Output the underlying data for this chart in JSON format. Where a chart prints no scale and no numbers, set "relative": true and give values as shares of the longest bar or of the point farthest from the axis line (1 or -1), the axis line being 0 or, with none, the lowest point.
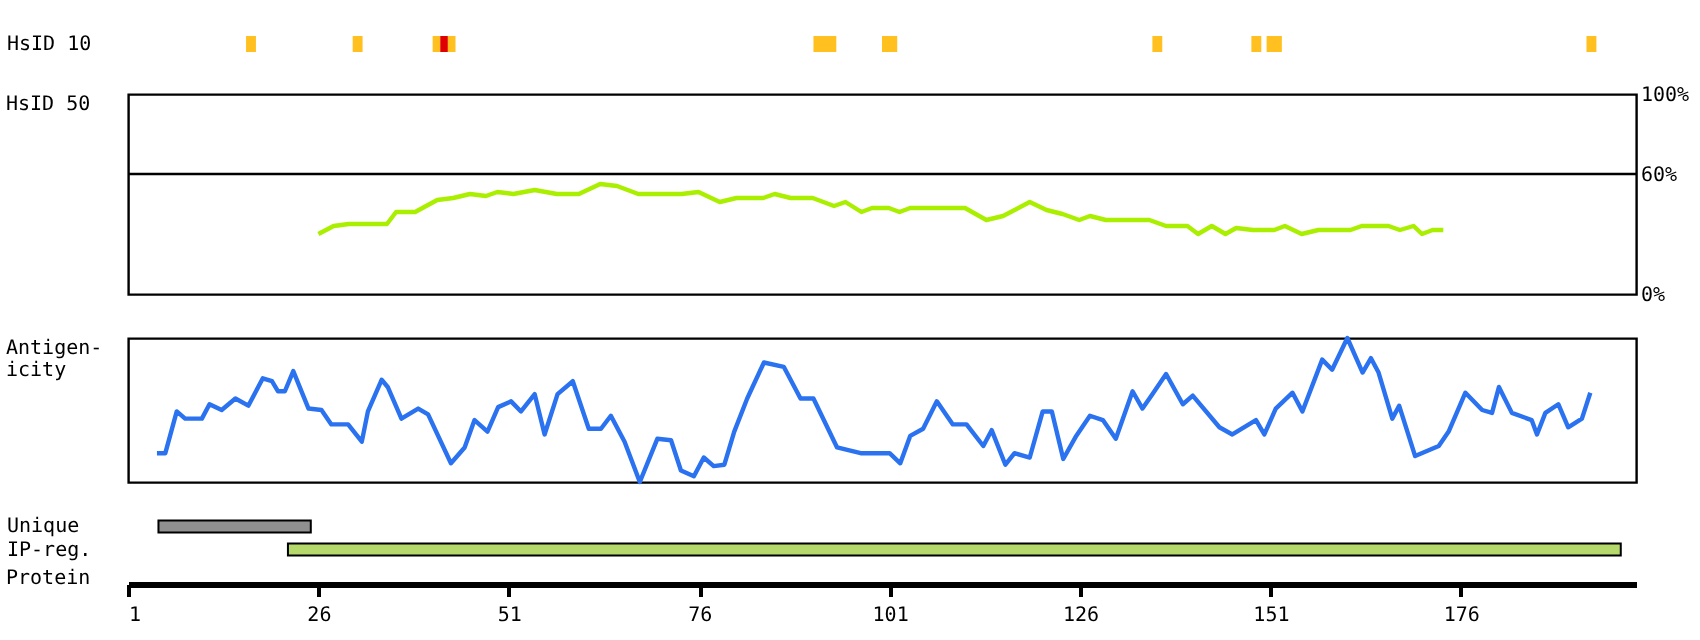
{
  "chart_data": [
    {
      "type": "bar",
      "orientation": "horizontal",
      "categories": [
        "HsID 10"
      ],
      "xlim": [
        1,
        199
      ],
      "tick_labels": "y",
      "series": [
        {
          "color": "#ffc020",
          "base": [
            16.5
          ],
          "values": [
            1.3
          ]
        },
        {
          "color": "#ffc020",
          "base": [
            30.5
          ],
          "values": [
            1.3
          ]
        },
        {
          "color": "#ffc020",
          "base": [
            41
          ],
          "values": [
            1
          ]
        },
        {
          "color": "#e00000",
          "base": [
            42
          ],
          "values": [
            1
          ]
        },
        {
          "color": "#ffc020",
          "base": [
            43
          ],
          "values": [
            1
          ]
        },
        {
          "color": "#ffc020",
          "base": [
            91
          ],
          "values": [
            3
          ]
        },
        {
          "color": "#ffc020",
          "base": [
            100
          ],
          "values": [
            2
          ]
        },
        {
          "color": "#ffc020",
          "base": [
            135.5
          ],
          "values": [
            1.3
          ]
        },
        {
          "color": "#ffc020",
          "base": [
            148.5
          ],
          "values": [
            1.3
          ]
        },
        {
          "color": "#ffc020",
          "base": [
            150.5
          ],
          "values": [
            2
          ]
        },
        {
          "color": "#ffc020",
          "base": [
            192.5
          ],
          "values": [
            1.3
          ]
        }
      ]
    },
    {
      "type": "line",
      "ylabel": "HsID 50",
      "xlim": [
        1,
        199
      ],
      "ylim": [
        0,
        100
      ],
      "tick_labels": "y",
      "yticks": [
        {
          "value": 0,
          "label": "0%"
        },
        {
          "value": 60,
          "label": "60%"
        },
        {
          "value": 100,
          "label": "100%"
        }
      ],
      "ref_lines": [
        {
          "axis": "y",
          "value": 60,
          "color": "#000000"
        }
      ],
      "series": [
        {
          "color": "#aaee00",
          "x": [
            26,
            28,
            30,
            35,
            36.2,
            38.7,
            41.6,
            43.7,
            45.9,
            48,
            49.5,
            51.6,
            54.4,
            57.3,
            60.2,
            63,
            65.2,
            68,
            73.7,
            75.9,
            78.7,
            80.9,
            84.4,
            85.9,
            88,
            90.9,
            93.7,
            95.2,
            97.3,
            98.7,
            100.9,
            102.3,
            103.7,
            110.9,
            113.7,
            115.9,
            119.4,
            121.6,
            123.7,
            125.9,
            127.3,
            129.4,
            135.1,
            137.3,
            140.1,
            141.5,
            143.3,
            145.1,
            146.5,
            148.7,
            151.5,
            152.9,
            155.1,
            157.3,
            161.5,
            163,
            166.5,
            168,
            169.8,
            170.9,
            172.3,
            173.7
          ],
          "values": [
            30,
            34,
            35,
            35,
            41,
            41,
            47,
            48,
            50,
            49,
            51,
            50,
            52,
            50,
            50,
            55,
            54,
            50,
            50,
            51,
            46,
            48,
            48,
            50,
            48,
            48,
            44,
            46,
            41,
            43,
            43,
            41,
            43,
            43,
            37,
            39,
            46,
            42,
            40,
            37,
            39,
            37,
            37,
            34,
            34,
            30,
            34,
            30,
            33,
            32,
            32,
            34,
            30,
            32,
            32,
            34,
            34,
            32,
            34,
            30,
            32,
            32
          ]
        }
      ]
    },
    {
      "type": "line",
      "relative": true,
      "ylabel": "Antigen-icity",
      "xlim": [
        1,
        199
      ],
      "tick_labels": false,
      "series": [
        {
          "color": "#2a72f0",
          "x": [
            4.8,
            5.9,
            7.4,
            8.5,
            10.7,
            11.7,
            13.3,
            15.1,
            16.8,
            18.7,
            19.9,
            20.7,
            21.6,
            22.7,
            24.7,
            26.4,
            27.7,
            29.9,
            31.7,
            32.5,
            34.3,
            35.1,
            36.9,
            39.1,
            40.4,
            43.4,
            45.2,
            46.5,
            48.2,
            49.6,
            51.3,
            52.6,
            54.4,
            55.7,
            57.4,
            59.4,
            61.5,
            63.1,
            64.4,
            66.2,
            68.2,
            70.5,
            72.3,
            73.6,
            75.3,
            76.6,
            77.9,
            79.3,
            80.6,
            82.3,
            84.5,
            87.1,
            89.3,
            91.0,
            94.1,
            97.2,
            101.0,
            102.4,
            103.7,
            105.4,
            107.2,
            109.3,
            111.1,
            113.3,
            114.4,
            116.2,
            117.4,
            119.4,
            121.1,
            122.3,
            123.8,
            125.5,
            127.3,
            129.0,
            130.7,
            132.9,
            134.2,
            135.5,
            137.3,
            139.5,
            140.8,
            144.3,
            146.0,
            149.1,
            150.2,
            151.7,
            153.9,
            155.2,
            157.8,
            159.1,
            161.1,
            163.1,
            164.2,
            165.2,
            167.0,
            167.9,
            170.0,
            173.1,
            174.4,
            176.6,
            178.8,
            180.1,
            181.0,
            182.7,
            185.3,
            186.0,
            187.1,
            188.8,
            190.1,
            191.9,
            193.0
          ],
          "values": [
            0.2,
            0.2,
            0.49,
            0.44,
            0.44,
            0.54,
            0.5,
            0.58,
            0.53,
            0.72,
            0.7,
            0.63,
            0.63,
            0.77,
            0.51,
            0.5,
            0.4,
            0.4,
            0.28,
            0.49,
            0.71,
            0.66,
            0.44,
            0.51,
            0.47,
            0.13,
            0.24,
            0.43,
            0.35,
            0.52,
            0.56,
            0.49,
            0.61,
            0.33,
            0.61,
            0.7,
            0.37,
            0.37,
            0.46,
            0.28,
            0,
            0.3,
            0.29,
            0.08,
            0.04,
            0.17,
            0.11,
            0.12,
            0.35,
            0.58,
            0.83,
            0.8,
            0.58,
            0.58,
            0.24,
            0.2,
            0.2,
            0.13,
            0.32,
            0.37,
            0.56,
            0.4,
            0.4,
            0.25,
            0.36,
            0.12,
            0.2,
            0.17,
            0.49,
            0.49,
            0.16,
            0.32,
            0.46,
            0.43,
            0.3,
            0.63,
            0.51,
            0.61,
            0.75,
            0.54,
            0.6,
            0.38,
            0.33,
            0.43,
            0.33,
            0.51,
            0.62,
            0.49,
            0.85,
            0.78,
            1,
            0.76,
            0.86,
            0.76,
            0.44,
            0.53,
            0.18,
            0.25,
            0.35,
            0.62,
            0.5,
            0.48,
            0.66,
            0.48,
            0.43,
            0.33,
            0.48,
            0.54,
            0.38,
            0.44,
            0.62
          ]
        }
      ]
    },
    {
      "type": "bar",
      "orientation": "horizontal",
      "xlabel": "Protein",
      "categories": [
        "Unique",
        "IP-reg."
      ],
      "base": [
        5,
        22
      ],
      "values": [
        20,
        175
      ],
      "colors": [
        "#909090",
        "#b5d96a"
      ],
      "xlim": [
        1,
        199
      ],
      "xticks": [
        1,
        26,
        51,
        76,
        101,
        126,
        151,
        176
      ]
    }
  ]
}
